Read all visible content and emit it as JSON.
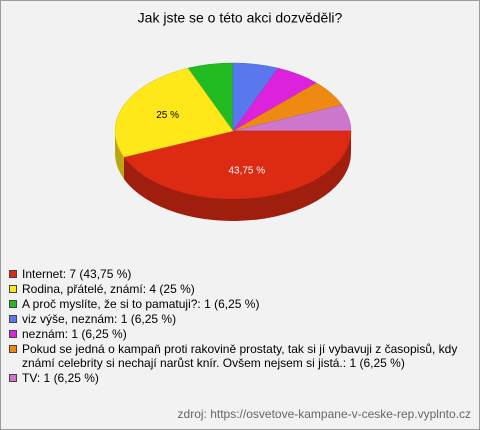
{
  "chart_data": {
    "type": "pie",
    "title": "Jak jste se o této akci dozvěděli?",
    "categories": [
      "Internet: 7 (43,75 %)",
      "Rodina, přátelé, známí: 4 (25 %)",
      "A proč myslíte, že si to pamatuji?: 1 (6,25 %)",
      "viz výše, neznám: 1 (6,25 %)",
      "neznám: 1 (6,25 %)",
      "Pokud se jedná o kampaň proti rakovině prostaty, tak si jí vybavuji z časopisů, kdy známí celebrity si nechají narůst knír. Ovšem nejsem si jistá.: 1 (6,25 %)",
      "TV: 1 (6,25 %)"
    ],
    "values": [
      43.75,
      25,
      6.25,
      6.25,
      6.25,
      6.25,
      6.25
    ],
    "value_labels": [
      "43,75 %",
      "25 %",
      null,
      null,
      null,
      null,
      null
    ],
    "colors": [
      "#dd2a12",
      "#ffe81a",
      "#22bb22",
      "#5a78ee",
      "#dd22dd",
      "#ee8a11",
      "#cc77cc"
    ],
    "source": "zdroj: https://osvetove-kampane-v-ceske-rep.vyplnto.cz"
  }
}
